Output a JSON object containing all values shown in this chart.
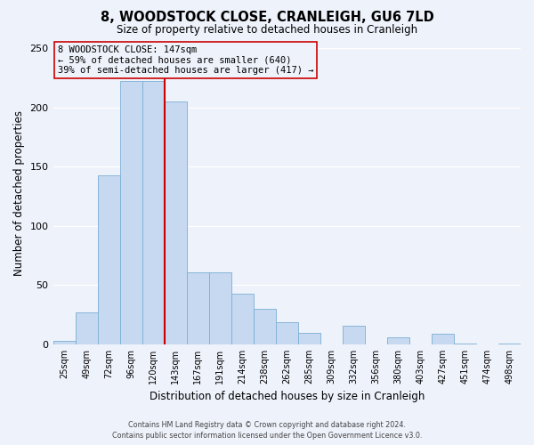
{
  "title": "8, WOODSTOCK CLOSE, CRANLEIGH, GU6 7LD",
  "subtitle": "Size of property relative to detached houses in Cranleigh",
  "xlabel": "Distribution of detached houses by size in Cranleigh",
  "ylabel": "Number of detached properties",
  "bar_labels": [
    "25sqm",
    "49sqm",
    "72sqm",
    "96sqm",
    "120sqm",
    "143sqm",
    "167sqm",
    "191sqm",
    "214sqm",
    "238sqm",
    "262sqm",
    "285sqm",
    "309sqm",
    "332sqm",
    "356sqm",
    "380sqm",
    "403sqm",
    "427sqm",
    "451sqm",
    "474sqm",
    "498sqm"
  ],
  "bar_values": [
    3,
    27,
    143,
    222,
    222,
    205,
    61,
    61,
    43,
    30,
    19,
    10,
    0,
    16,
    0,
    6,
    0,
    9,
    1,
    0,
    1
  ],
  "bar_color": "#c6d9f0",
  "bar_edge_color": "#7bafd4",
  "vline_color": "#cc0000",
  "vline_x_idx": 5,
  "ylim": [
    0,
    255
  ],
  "yticks": [
    0,
    50,
    100,
    150,
    200,
    250
  ],
  "annotation_title": "8 WOODSTOCK CLOSE: 147sqm",
  "annotation_line1": "← 59% of detached houses are smaller (640)",
  "annotation_line2": "39% of semi-detached houses are larger (417) →",
  "footer_line1": "Contains HM Land Registry data © Crown copyright and database right 2024.",
  "footer_line2": "Contains public sector information licensed under the Open Government Licence v3.0.",
  "background_color": "#eef2fb",
  "grid_color": "#ffffff"
}
